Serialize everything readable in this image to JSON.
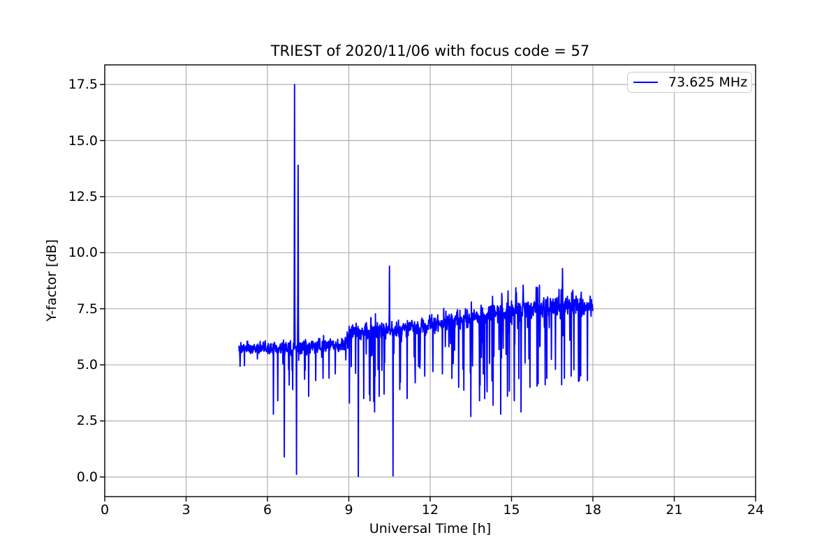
{
  "chart_data": {
    "type": "line",
    "title": "TRIEST of 2020/11/06 with focus code = 57",
    "xlabel": "Universal Time [h]",
    "ylabel": "Y-factor [dB]",
    "xlim": [
      0,
      24
    ],
    "ylim": [
      -0.875,
      18.375
    ],
    "grid": true,
    "grid_color": "#b0b0b0",
    "axes_color": "#000000",
    "background_color": "#ffffff",
    "x_ticks": [
      {
        "value": 0,
        "label": "0"
      },
      {
        "value": 3,
        "label": "3"
      },
      {
        "value": 6,
        "label": "6"
      },
      {
        "value": 9,
        "label": "9"
      },
      {
        "value": 12,
        "label": "12"
      },
      {
        "value": 15,
        "label": "15"
      },
      {
        "value": 18,
        "label": "18"
      },
      {
        "value": 21,
        "label": "21"
      },
      {
        "value": 24,
        "label": "24"
      }
    ],
    "y_ticks": [
      {
        "value": 0.0,
        "label": "0.0"
      },
      {
        "value": 2.5,
        "label": "2.5"
      },
      {
        "value": 5.0,
        "label": "5.0"
      },
      {
        "value": 7.5,
        "label": "7.5"
      },
      {
        "value": 10.0,
        "label": "10.0"
      },
      {
        "value": 12.5,
        "label": "12.5"
      },
      {
        "value": 15.0,
        "label": "15.0"
      },
      {
        "value": 17.5,
        "label": "17.5"
      }
    ],
    "legend": {
      "position": "upper right",
      "entries": [
        {
          "label": "73.625 MHz",
          "color": "#0000ff"
        }
      ]
    },
    "series": [
      {
        "name": "73.625 MHz",
        "color": "#0000ff",
        "line_width": 1.9,
        "x_start": 4.95,
        "x_end": 18.0,
        "x_step": 0.01,
        "seed": 20201106,
        "baseline": [
          [
            4.95,
            5.72
          ],
          [
            5.5,
            5.75
          ],
          [
            6.0,
            5.72
          ],
          [
            6.5,
            5.72
          ],
          [
            7.0,
            5.78
          ],
          [
            7.6,
            5.8
          ],
          [
            8.2,
            5.85
          ],
          [
            8.85,
            5.92
          ],
          [
            8.95,
            6.35
          ],
          [
            9.2,
            6.45
          ],
          [
            9.6,
            6.5
          ],
          [
            10.2,
            6.52
          ],
          [
            10.8,
            6.6
          ],
          [
            11.4,
            6.7
          ],
          [
            12.0,
            6.8
          ],
          [
            12.6,
            6.92
          ],
          [
            13.2,
            7.05
          ],
          [
            13.8,
            7.15
          ],
          [
            14.4,
            7.25
          ],
          [
            15.0,
            7.4
          ],
          [
            15.6,
            7.48
          ],
          [
            16.2,
            7.52
          ],
          [
            16.8,
            7.6
          ],
          [
            17.4,
            7.62
          ],
          [
            18.0,
            7.55
          ]
        ],
        "noise_segments": [
          {
            "from": 4.95,
            "to": 6.2,
            "jitter": 0.18,
            "dip_p": 0.04,
            "dip_max": 1.2,
            "up_p": 0.02,
            "up_max": 0.45
          },
          {
            "from": 6.2,
            "to": 7.6,
            "jitter": 0.2,
            "dip_p": 0.08,
            "dip_max": 2.2,
            "up_p": 0.02,
            "up_max": 0.5
          },
          {
            "from": 7.6,
            "to": 8.85,
            "jitter": 0.18,
            "dip_p": 0.05,
            "dip_max": 1.5,
            "up_p": 0.02,
            "up_max": 0.5
          },
          {
            "from": 8.85,
            "to": 10.8,
            "jitter": 0.22,
            "dip_p": 0.11,
            "dip_max": 3.2,
            "up_p": 0.03,
            "up_max": 0.7
          },
          {
            "from": 10.8,
            "to": 13.0,
            "jitter": 0.24,
            "dip_p": 0.09,
            "dip_max": 2.4,
            "up_p": 0.04,
            "up_max": 0.7
          },
          {
            "from": 13.0,
            "to": 18.0,
            "jitter": 0.26,
            "dip_p": 0.12,
            "dip_max": 3.6,
            "up_p": 0.05,
            "up_max": 1.0
          }
        ],
        "dips": [
          [
            6.22,
            2.8
          ],
          [
            6.38,
            3.4
          ],
          [
            6.62,
            0.9
          ],
          [
            6.8,
            4.1
          ],
          [
            6.93,
            3.9
          ],
          [
            7.07,
            0.12
          ],
          [
            7.52,
            3.6
          ],
          [
            7.78,
            4.3
          ],
          [
            8.05,
            4.4
          ],
          [
            8.5,
            4.6
          ],
          [
            9.02,
            3.3
          ],
          [
            9.35,
            0.02
          ],
          [
            9.55,
            3.5
          ],
          [
            9.78,
            3.4
          ],
          [
            9.95,
            2.9
          ],
          [
            10.12,
            3.6
          ],
          [
            10.3,
            3.7
          ],
          [
            10.63,
            0.05
          ],
          [
            10.88,
            3.9
          ],
          [
            11.15,
            3.5
          ],
          [
            11.45,
            4.2
          ],
          [
            11.8,
            4.5
          ],
          [
            12.1,
            4.7
          ],
          [
            12.45,
            4.6
          ],
          [
            12.8,
            4.4
          ],
          [
            13.05,
            4.0
          ],
          [
            13.5,
            2.7
          ],
          [
            13.82,
            3.4
          ],
          [
            14.1,
            3.8
          ],
          [
            14.32,
            3.2
          ],
          [
            14.6,
            2.8
          ],
          [
            14.85,
            3.6
          ],
          [
            15.1,
            3.4
          ],
          [
            15.35,
            2.9
          ],
          [
            15.68,
            4.0
          ],
          [
            15.95,
            4.3
          ],
          [
            16.3,
            4.4
          ],
          [
            16.62,
            4.8
          ],
          [
            16.95,
            4.4
          ],
          [
            17.2,
            4.5
          ],
          [
            17.5,
            4.3
          ],
          [
            17.8,
            4.3
          ]
        ],
        "peaks": [
          [
            7.0,
            17.5
          ],
          [
            7.13,
            13.9
          ],
          [
            10.5,
            9.4
          ],
          [
            16.88,
            9.3
          ]
        ]
      }
    ]
  }
}
